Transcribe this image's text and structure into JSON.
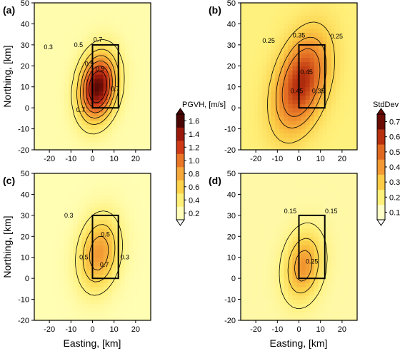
{
  "chart_data": [
    {
      "panel": "(a)",
      "type": "heatmap",
      "xlabel": "",
      "ylabel": "Northing, [km]",
      "xlim": [
        -27,
        27
      ],
      "ylim": [
        -20,
        50
      ],
      "xticks": [
        "-20",
        "-10",
        "0",
        "10",
        "20"
      ],
      "yticks": [
        "-20",
        "-10",
        "0",
        "10",
        "20",
        "30",
        "40",
        "50"
      ],
      "colorscale": "pgvh",
      "fault_box": {
        "x": [
          0,
          12
        ],
        "y": [
          0,
          30
        ]
      },
      "contour_levels": [
        0.3,
        0.5,
        0.7,
        0.9,
        1.1,
        1.3
      ],
      "field": {
        "peak": 1.65,
        "base": 0.14,
        "cx": 2.5,
        "cy": 10,
        "sx": 8,
        "sy": 15,
        "tilt": 0.1
      },
      "contour_labels": [
        {
          "x": -20.5,
          "y": 29,
          "text": "0.3"
        },
        {
          "x": -6.5,
          "y": 30,
          "text": "0.5"
        },
        {
          "x": 2.5,
          "y": 32.5,
          "text": "0.7"
        },
        {
          "x": -1.5,
          "y": 21,
          "text": "0.9"
        },
        {
          "x": 3.5,
          "y": 18.5,
          "text": "0.9"
        },
        {
          "x": 10.5,
          "y": 9,
          "text": "0.7"
        },
        {
          "x": -5.5,
          "y": -1,
          "text": "0.7"
        }
      ]
    },
    {
      "panel": "(b)",
      "type": "heatmap",
      "xlabel": "",
      "ylabel": "",
      "xlim": [
        -27,
        27
      ],
      "ylim": [
        -20,
        50
      ],
      "xticks": [
        "-20",
        "-10",
        "0",
        "10",
        "20"
      ],
      "yticks": [
        "-20",
        "-10",
        "0",
        "10",
        "20",
        "30",
        "40",
        "50"
      ],
      "colorscale": "stddev",
      "fault_box": {
        "x": [
          0,
          12
        ],
        "y": [
          0,
          30
        ]
      },
      "contour_levels": [
        0.15,
        0.25,
        0.35,
        0.45
      ],
      "field": {
        "peak": 0.66,
        "base": 0.16,
        "cx": 1,
        "cy": 12,
        "sx": 11,
        "sy": 22,
        "tilt": 0.2
      },
      "contour_labels": [
        {
          "x": -14,
          "y": 32,
          "text": "0.25"
        },
        {
          "x": 0,
          "y": 34.5,
          "text": "0.35"
        },
        {
          "x": 17.5,
          "y": 34,
          "text": "0.25"
        },
        {
          "x": 3.5,
          "y": 17,
          "text": "0.45"
        },
        {
          "x": -1,
          "y": 8,
          "text": "0.45"
        },
        {
          "x": 9,
          "y": 8,
          "text": "0.35"
        }
      ]
    },
    {
      "panel": "(c)",
      "type": "heatmap",
      "xlabel": "Easting, [km]",
      "ylabel": "Northing, [km]",
      "xlim": [
        -27,
        27
      ],
      "ylim": [
        -20,
        50
      ],
      "xticks": [
        "-20",
        "-10",
        "0",
        "10",
        "20"
      ],
      "yticks": [
        "-20",
        "-10",
        "0",
        "10",
        "20",
        "30",
        "40",
        "50"
      ],
      "colorscale": "pgvh",
      "fault_box": {
        "x": [
          0,
          12
        ],
        "y": [
          0,
          30
        ]
      },
      "contour_levels": [
        0.3,
        0.5,
        0.7
      ],
      "field": {
        "peak": 0.85,
        "base": 0.12,
        "cx": 3,
        "cy": 12,
        "sx": 9,
        "sy": 17,
        "tilt": 0.1
      },
      "contour_labels": [
        {
          "x": -11,
          "y": 30,
          "text": "0.3"
        },
        {
          "x": 6,
          "y": 21,
          "text": "0.5"
        },
        {
          "x": -4,
          "y": 10,
          "text": "0.5"
        },
        {
          "x": 5.5,
          "y": 6.5,
          "text": "0.7"
        },
        {
          "x": 15,
          "y": 10,
          "text": "0.3"
        }
      ]
    },
    {
      "panel": "(d)",
      "type": "heatmap",
      "xlabel": "Easting, [km]",
      "ylabel": "",
      "xlim": [
        -27,
        27
      ],
      "ylim": [
        -20,
        50
      ],
      "xticks": [
        "-20",
        "-10",
        "0",
        "10",
        "20"
      ],
      "yticks": [
        "-20",
        "-10",
        "0",
        "10",
        "20",
        "30",
        "40",
        "50"
      ],
      "colorscale": "stddev",
      "fault_box": {
        "x": [
          0,
          12
        ],
        "y": [
          0,
          30
        ]
      },
      "contour_levels": [
        0.15,
        0.25,
        0.35
      ],
      "field": {
        "peak": 0.42,
        "base": 0.1,
        "cx": 2,
        "cy": 6,
        "sx": 8,
        "sy": 15,
        "tilt": 0.1
      },
      "contour_labels": [
        {
          "x": -4,
          "y": 32,
          "text": "0.15"
        },
        {
          "x": 15,
          "y": 32,
          "text": "0.15"
        },
        {
          "x": 6,
          "y": 8,
          "text": "0.25"
        }
      ]
    }
  ],
  "colorbars": [
    {
      "label": "PGVH, [m/s]",
      "min": 0.2,
      "max": 1.6,
      "ticks": [
        "0.2",
        "0.4",
        "0.6",
        "0.8",
        "1.0",
        "1.2",
        "1.4",
        "1.6"
      ],
      "ramp": [
        "#ffffb9",
        "#fff07a",
        "#fcd34a",
        "#f6a93a",
        "#ea7628",
        "#cf3a17",
        "#9b190c",
        "#4b0603"
      ]
    },
    {
      "label": "StdDev",
      "min": 0.1,
      "max": 0.7,
      "ticks": [
        "0.1",
        "0.2",
        "0.3",
        "0.4",
        "0.5",
        "0.6",
        "0.7"
      ],
      "ramp": [
        "#ffffc8",
        "#fff07a",
        "#fbcd46",
        "#f39a33",
        "#e06922",
        "#b7300f",
        "#6b0c05"
      ]
    }
  ],
  "colors": {
    "box": "#000000",
    "contour": "#000000"
  }
}
